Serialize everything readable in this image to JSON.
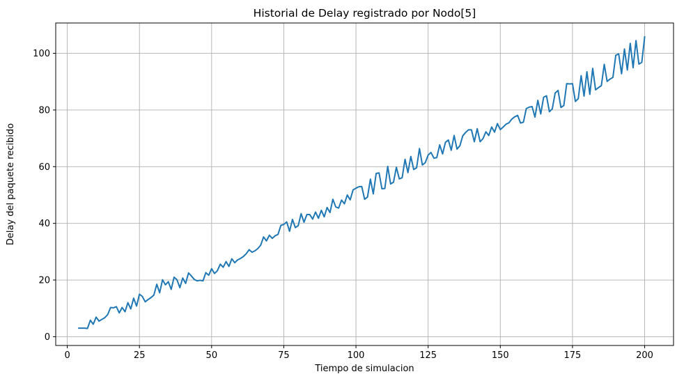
{
  "chart_data": {
    "type": "line",
    "title": "Historial de Delay registrado por Nodo[5]",
    "xlabel": "Tiempo de simulacion",
    "ylabel": "Delay del paquete recibido",
    "xlim": [
      -4,
      210
    ],
    "ylim": [
      -3.1,
      110.7
    ],
    "xticks": [
      0,
      25,
      50,
      75,
      100,
      125,
      150,
      175,
      200
    ],
    "yticks": [
      0,
      20,
      40,
      60,
      80,
      100
    ],
    "grid": true,
    "colors": {
      "line": "#1f77b4",
      "grid": "#b0b0b0",
      "axes": "#000000"
    },
    "series": [
      {
        "x": [
          4,
          5,
          6,
          7,
          8,
          9,
          10,
          11,
          12,
          13,
          14,
          15,
          16,
          17,
          18,
          19,
          20,
          21,
          22,
          23,
          24,
          25,
          26,
          27,
          28,
          29,
          30,
          31,
          32,
          33,
          34,
          35,
          36,
          37,
          38,
          39,
          40,
          41,
          42,
          43,
          44,
          45,
          46,
          47,
          48,
          49,
          50,
          51,
          52,
          53,
          54,
          55,
          56,
          57,
          58,
          59,
          60,
          61,
          62,
          63,
          64,
          65,
          66,
          67,
          68,
          69,
          70,
          71,
          72,
          73,
          74,
          75,
          76,
          77,
          78,
          79,
          80,
          81,
          82,
          83,
          84,
          85,
          86,
          87,
          88,
          89,
          90,
          91,
          92,
          93,
          94,
          95,
          96,
          97,
          98,
          99,
          100,
          101,
          102,
          103,
          104,
          105,
          106,
          107,
          108,
          109,
          110,
          111,
          112,
          113,
          114,
          115,
          116,
          117,
          118,
          119,
          120,
          121,
          122,
          123,
          124,
          125,
          126,
          127,
          128,
          129,
          130,
          131,
          132,
          133,
          134,
          135,
          136,
          137,
          138,
          139,
          140,
          141,
          142,
          143,
          144,
          145,
          146,
          147,
          148,
          149,
          150,
          151,
          152,
          153,
          154,
          155,
          156,
          157,
          158,
          159,
          160,
          161,
          162,
          163,
          164,
          165,
          166,
          167,
          168,
          169,
          170,
          171,
          172,
          173,
          174,
          175,
          176,
          177,
          178,
          179,
          180,
          181,
          182,
          183,
          184,
          185,
          186,
          187,
          188,
          189,
          190,
          191,
          192,
          193,
          194,
          195,
          196,
          197,
          198,
          199,
          200
        ],
        "values": [
          3.0,
          3.0,
          3.0,
          2.9,
          5.8,
          4.4,
          6.9,
          5.5,
          6.1,
          6.7,
          7.8,
          10.3,
          10.2,
          10.6,
          8.4,
          10.3,
          8.8,
          12.0,
          9.8,
          13.6,
          10.8,
          15.0,
          14.2,
          12.3,
          13.1,
          13.8,
          14.7,
          18.5,
          15.5,
          20.1,
          18.3,
          19.4,
          16.7,
          21.0,
          20.1,
          17.3,
          20.7,
          18.8,
          22.5,
          21.4,
          20.2,
          19.7,
          19.9,
          19.7,
          22.6,
          21.7,
          24.0,
          22.3,
          23.3,
          25.6,
          24.5,
          26.5,
          24.8,
          27.5,
          26.1,
          27.1,
          27.6,
          28.3,
          29.3,
          30.7,
          29.8,
          30.3,
          31.1,
          32.3,
          35.2,
          33.8,
          35.8,
          34.7,
          35.6,
          36.1,
          39.3,
          39.6,
          40.5,
          37.2,
          41.4,
          38.5,
          39.2,
          43.4,
          40.4,
          43.1,
          43.1,
          41.5,
          44.0,
          41.8,
          44.6,
          42.3,
          45.6,
          43.8,
          48.5,
          45.8,
          45.4,
          48.2,
          46.9,
          50.0,
          48.3,
          51.8,
          52.4,
          52.9,
          53.0,
          48.5,
          49.3,
          55.6,
          50.4,
          57.6,
          57.8,
          52.2,
          52.3,
          60.1,
          53.9,
          54.5,
          59.8,
          55.7,
          56.1,
          62.6,
          57.9,
          63.6,
          59.0,
          59.6,
          66.4,
          60.6,
          61.4,
          64.1,
          65.0,
          63.0,
          63.2,
          67.7,
          64.5,
          68.6,
          69.4,
          65.8,
          71.0,
          66.2,
          67.4,
          70.9,
          72.1,
          73.0,
          73.0,
          68.8,
          73.4,
          68.8,
          69.9,
          72.3,
          71.0,
          74.0,
          72.2,
          75.2,
          73.1,
          74.0,
          75.0,
          75.5,
          76.8,
          77.6,
          78.1,
          75.4,
          75.7,
          80.5,
          81.0,
          81.2,
          77.5,
          83.4,
          78.6,
          84.5,
          85.0,
          79.4,
          80.4,
          86.0,
          86.9,
          80.9,
          81.6,
          89.3,
          89.2,
          89.3,
          83.0,
          84.0,
          92.1,
          84.9,
          93.5,
          85.5,
          94.7,
          87.1,
          87.9,
          88.6,
          96.1,
          90.1,
          90.9,
          91.5,
          99.3,
          99.8,
          92.8,
          101.5,
          94.1,
          103.5,
          94.9,
          104.5,
          96.2,
          96.8,
          105.8
        ]
      }
    ]
  }
}
